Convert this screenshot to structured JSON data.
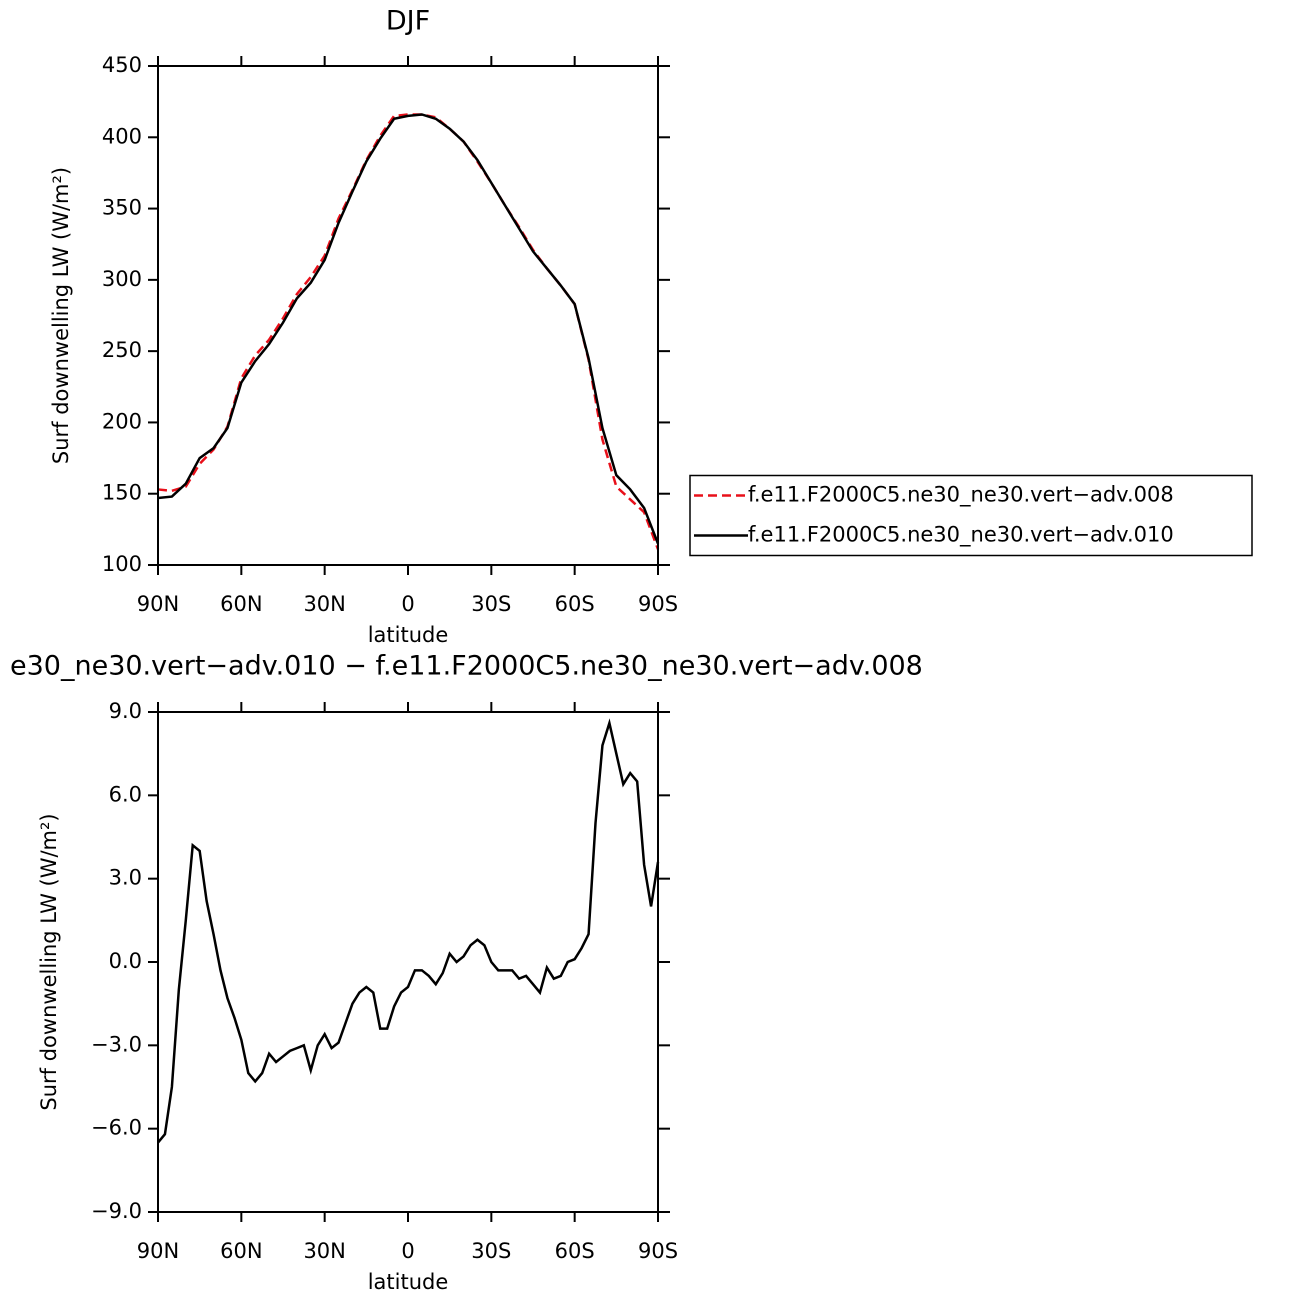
{
  "chart_data": [
    {
      "type": "line",
      "title": "DJF",
      "x_label": "latitude",
      "y_label": "Surf downwelling LW (W/m²)",
      "x": [
        90,
        85,
        80,
        75,
        70,
        65,
        60,
        55,
        50,
        45,
        40,
        35,
        30,
        25,
        20,
        15,
        10,
        5,
        0,
        -5,
        -10,
        -15,
        -20,
        -25,
        -30,
        -35,
        -40,
        -45,
        -50,
        -55,
        -60,
        -65,
        -70,
        -75,
        -80,
        -85,
        -90
      ],
      "series": [
        {
          "name": "f.e11.F2000C5.ne30_ne30.vert−adv.008",
          "color": "#e8101a",
          "line_style": "dashed",
          "values": [
            153,
            152,
            155,
            171,
            181,
            197,
            231,
            247,
            258,
            273,
            290,
            302,
            317,
            343,
            363,
            384,
            401,
            415,
            416,
            416,
            414,
            406,
            397,
            383,
            368,
            352,
            337,
            321,
            308,
            296,
            283,
            244,
            188,
            155,
            146,
            137,
            111
          ]
        },
        {
          "name": "f.e11.F2000C5.ne30_ne30.vert−adv.010",
          "color": "#000000",
          "line_style": "solid",
          "values": [
            147,
            148,
            157,
            175,
            182,
            196,
            228,
            243,
            255,
            270,
            287,
            298,
            314,
            340,
            362,
            383,
            399,
            413,
            415,
            416,
            413,
            406,
            397,
            384,
            368,
            352,
            336,
            320,
            308,
            296,
            283,
            245,
            196,
            163,
            153,
            140,
            115
          ]
        }
      ],
      "xlim": [
        90,
        -90
      ],
      "xticks": [
        {
          "value": 90,
          "label": "90N"
        },
        {
          "value": 60,
          "label": "60N"
        },
        {
          "value": 30,
          "label": "30N"
        },
        0,
        {
          "value": -30,
          "label": "30S"
        },
        {
          "value": -60,
          "label": "60S"
        },
        {
          "value": -90,
          "label": "90S"
        }
      ],
      "ylim": [
        100,
        450
      ],
      "yticks": [
        100,
        150,
        200,
        250,
        300,
        350,
        400,
        450
      ],
      "legend": "right"
    },
    {
      "type": "line",
      "title": "e30_ne30.vert−adv.010 − f.e11.F2000C5.ne30_ne30.vert−adv.008",
      "x_label": "latitude",
      "y_label": "Surf downwelling LW (W/m²)",
      "x": [
        90,
        87.5,
        85,
        82.5,
        80,
        77.5,
        75,
        72.5,
        70,
        67.5,
        65,
        62.5,
        60,
        57.5,
        55,
        52.5,
        50,
        47.5,
        45,
        42.5,
        40,
        37.5,
        35,
        32.5,
        30,
        27.5,
        25,
        22.5,
        20,
        17.5,
        15,
        12.5,
        10,
        7.5,
        5,
        2.5,
        0,
        -2.5,
        -5,
        -7.5,
        -10,
        -12.5,
        -15,
        -17.5,
        -20,
        -22.5,
        -25,
        -27.5,
        -30,
        -32.5,
        -35,
        -37.5,
        -40,
        -42.5,
        -45,
        -47.5,
        -50,
        -52.5,
        -55,
        -57.5,
        -60,
        -62.5,
        -65,
        -67.5,
        -70,
        -72.5,
        -75,
        -77.5,
        -80,
        -82.5,
        -85,
        -87.5,
        -90
      ],
      "series": [
        {
          "color": "#000000",
          "line_style": "solid",
          "values": [
            -6.5,
            -6.2,
            -4.5,
            -1.0,
            1.5,
            4.2,
            4.0,
            2.2,
            1.0,
            -0.3,
            -1.3,
            -2.0,
            -2.8,
            -4.0,
            -4.3,
            -4.0,
            -3.3,
            -3.6,
            -3.4,
            -3.2,
            -3.1,
            -3.0,
            -3.9,
            -3.0,
            -2.6,
            -3.1,
            -2.9,
            -2.2,
            -1.5,
            -1.1,
            -0.9,
            -1.1,
            -2.4,
            -2.4,
            -1.6,
            -1.1,
            -0.9,
            -0.3,
            -0.3,
            -0.5,
            -0.8,
            -0.4,
            0.3,
            0.0,
            0.2,
            0.6,
            0.8,
            0.6,
            0.0,
            -0.3,
            -0.3,
            -0.3,
            -0.6,
            -0.5,
            -0.8,
            -1.1,
            -0.2,
            -0.6,
            -0.5,
            0.0,
            0.1,
            0.5,
            1.0,
            5.0,
            7.8,
            8.6,
            7.5,
            6.4,
            6.8,
            6.5,
            3.5,
            2.0,
            3.6
          ]
        }
      ],
      "xlim": [
        90,
        -90
      ],
      "xticks": [
        {
          "value": 90,
          "label": "90N"
        },
        {
          "value": 60,
          "label": "60N"
        },
        {
          "value": 30,
          "label": "30N"
        },
        0,
        {
          "value": -30,
          "label": "30S"
        },
        {
          "value": -60,
          "label": "60S"
        },
        {
          "value": -90,
          "label": "90S"
        }
      ],
      "ylim": [
        -9,
        9
      ],
      "yticks": [
        {
          "value": -9,
          "label": "−9.0"
        },
        {
          "value": -6,
          "label": "−6.0"
        },
        {
          "value": -3,
          "label": "−3.0"
        },
        {
          "value": 0,
          "label": "0.0"
        },
        {
          "value": 3,
          "label": "3.0"
        },
        {
          "value": 6,
          "label": "6.0"
        },
        {
          "value": 9,
          "label": "9.0"
        }
      ]
    }
  ]
}
